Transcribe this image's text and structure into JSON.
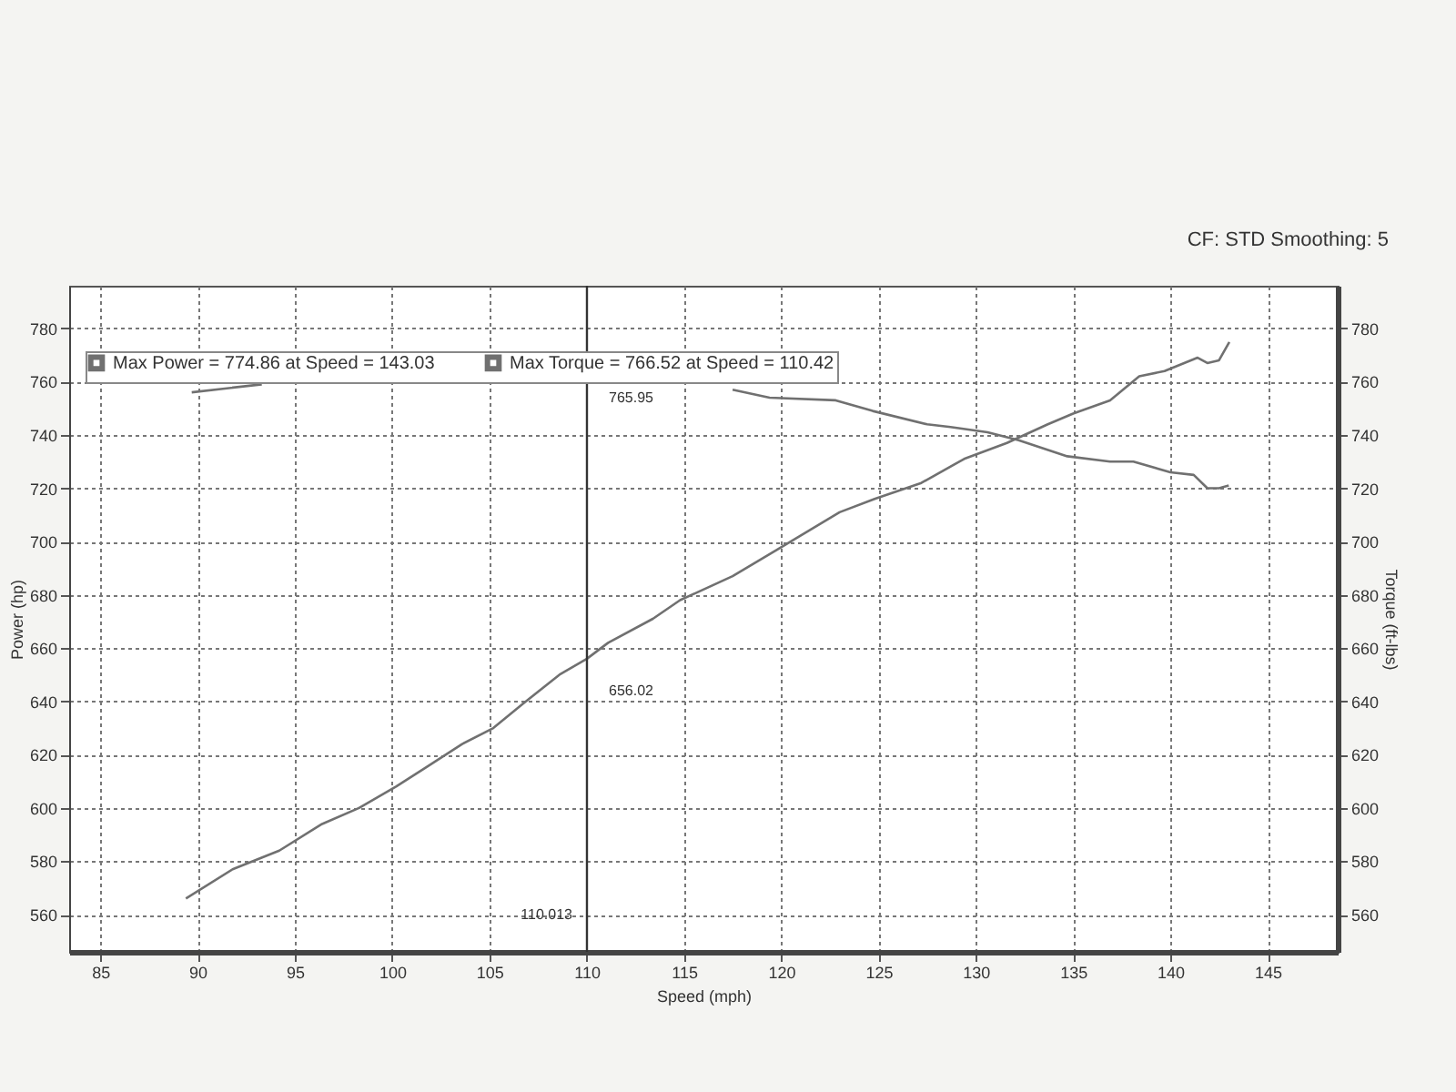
{
  "chart_data": {
    "type": "line",
    "annotations": [
      "CF: STD Smoothing: 5",
      {
        "text": "656.02",
        "x": 110.013,
        "y": 656.02
      },
      {
        "text": "765.95",
        "x": 110.013,
        "y": 765.95
      }
    ],
    "xlabel": "Speed (mph)",
    "ylabel": "Power (hp)",
    "y2label": "Torque (ft-lbs)",
    "xlim": [
      83.4,
      148.6
    ],
    "xticks": [
      85,
      90,
      95,
      100,
      105,
      110,
      115,
      120,
      125,
      130,
      135,
      140,
      145
    ],
    "ylim": [
      546,
      796
    ],
    "yticks": [
      560,
      580,
      600,
      620,
      640,
      660,
      680,
      700,
      720,
      740,
      760,
      780
    ],
    "y2lim": [
      546,
      796
    ],
    "y2ticks": [
      560,
      580,
      600,
      620,
      640,
      660,
      680,
      700,
      720,
      740,
      760,
      780
    ],
    "series": [
      {
        "name": "Max Power = 774.86 at Speed = 143.03",
        "color": "#707070",
        "x": [
          89.4,
          91.8,
          94.2,
          96.4,
          98.3,
          100.2,
          101.7,
          103.6,
          105.2,
          106.7,
          108.6,
          110.013,
          111.1,
          113.4,
          114.8,
          117.5,
          119.8,
          123.0,
          124.8,
          127.2,
          129.4,
          131.6,
          133.7,
          135.0,
          136.9,
          138.4,
          139.7,
          141.4,
          141.9,
          142.5,
          143.03
        ],
        "values": [
          566,
          577,
          584,
          594,
          600,
          608,
          615,
          624,
          630,
          639,
          650,
          656.02,
          662,
          671,
          678,
          687,
          697,
          711,
          716,
          722,
          731,
          737,
          744,
          748,
          753,
          762,
          764,
          769,
          767,
          768,
          774.86
        ]
      },
      {
        "name": "Max Torque = 766.52 at Speed = 110.42",
        "color": "#707070",
        "axis": "y2",
        "x": [
          89.7,
          93.3,
          105,
          117.5,
          119.4,
          122.8,
          124.7,
          127.5,
          128.7,
          130.6,
          132.2,
          134.7,
          136.9,
          138.1,
          140.0,
          141.2,
          141.9,
          142.5,
          143.0
        ],
        "values": [
          756,
          759,
          null,
          757,
          754,
          753,
          749,
          744,
          743,
          741,
          738,
          732,
          730,
          730,
          726,
          725,
          720,
          720,
          721
        ]
      }
    ],
    "ref_lines": [
      {
        "axis": "x",
        "value": 110.013,
        "label": "110.013",
        "color": "#333333"
      }
    ],
    "grid": true,
    "legend": "top left",
    "marker": "none",
    "line_style": "solid"
  }
}
